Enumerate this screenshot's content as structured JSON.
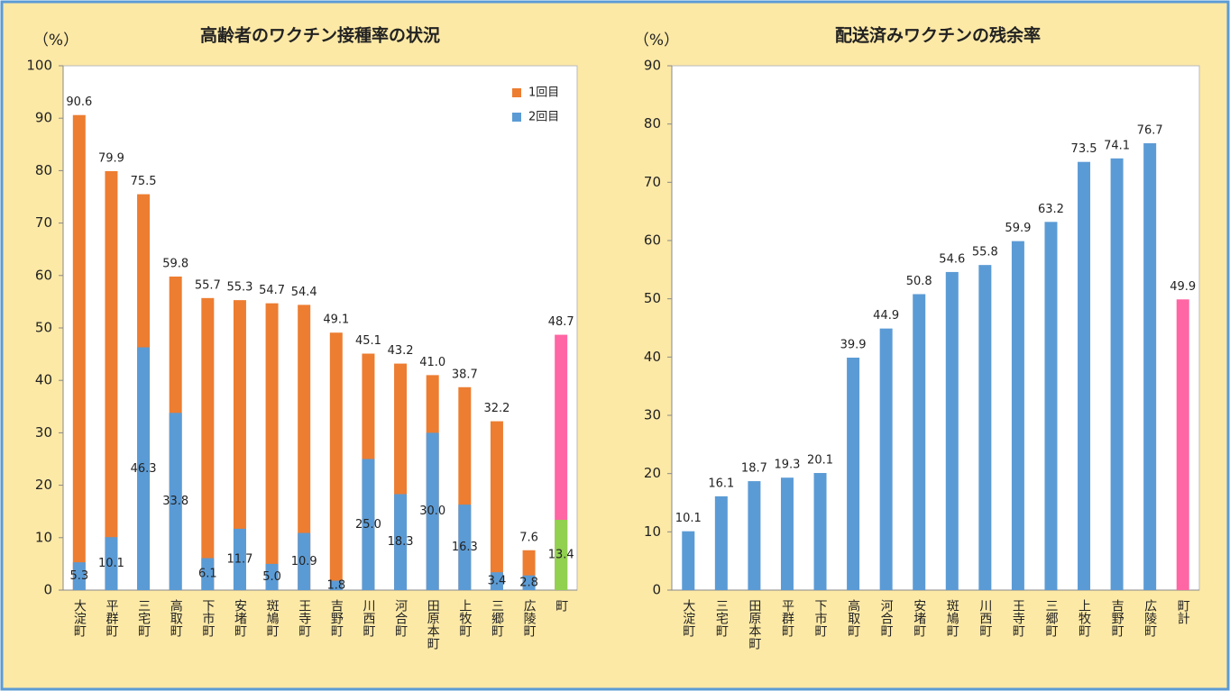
{
  "chart_data": [
    {
      "type": "bar",
      "title": "高齢者のワクチン接種率の状況",
      "y_label": "（%）",
      "categories": [
        "大淀町",
        "平群町",
        "三宅町",
        "高取町",
        "下市町",
        "安堵町",
        "斑鳩町",
        "王寺町",
        "吉野町",
        "川西町",
        "河合町",
        "田原本町",
        "上牧町",
        "三郷町",
        "広陵町",
        "町"
      ],
      "series": [
        {
          "name": "1回目",
          "color": "#ed7d31",
          "colors": [
            "#ed7d31",
            "#ed7d31",
            "#ed7d31",
            "#ed7d31",
            "#ed7d31",
            "#ed7d31",
            "#ed7d31",
            "#ed7d31",
            "#ed7d31",
            "#ed7d31",
            "#ed7d31",
            "#ed7d31",
            "#ed7d31",
            "#ed7d31",
            "#ed7d31",
            "#ff66a3"
          ],
          "values": [
            90.6,
            79.9,
            75.5,
            59.8,
            55.7,
            55.3,
            54.7,
            54.4,
            49.1,
            45.1,
            43.2,
            41.0,
            38.7,
            32.2,
            7.6,
            48.7
          ],
          "value_labels": [
            "90.6",
            "79.9",
            "75.5",
            "59.8",
            "55.7",
            "55.3",
            "54.7",
            "54.4",
            "49.1",
            "45.1",
            "43.2",
            "41.0",
            "38.7",
            "32.2",
            "7.6",
            "48.7"
          ]
        },
        {
          "name": "2回目",
          "color": "#5b9bd5",
          "colors": [
            "#5b9bd5",
            "#5b9bd5",
            "#5b9bd5",
            "#5b9bd5",
            "#5b9bd5",
            "#5b9bd5",
            "#5b9bd5",
            "#5b9bd5",
            "#5b9bd5",
            "#5b9bd5",
            "#5b9bd5",
            "#5b9bd5",
            "#5b9bd5",
            "#5b9bd5",
            "#5b9bd5",
            "#92d050"
          ],
          "values": [
            5.3,
            10.1,
            46.3,
            33.8,
            6.1,
            11.7,
            5.0,
            10.9,
            1.8,
            25.0,
            18.3,
            30.0,
            16.3,
            3.4,
            2.8,
            13.4
          ],
          "value_labels": [
            "5.3",
            "10.1",
            "46.3",
            "33.8",
            "6.1",
            "11.7",
            "5.0",
            "10.9",
            "1.8",
            "25.0",
            "18.3",
            "30.0",
            "16.3",
            "3.4",
            "2.8",
            "13.4"
          ]
        }
      ],
      "ylim": [
        0,
        100
      ],
      "yticks": [
        0,
        10,
        20,
        30,
        40,
        50,
        60,
        70,
        80,
        90,
        100
      ],
      "legend": "upper right",
      "grid": false
    },
    {
      "type": "bar",
      "title": "配送済みワクチンの残余率",
      "y_label": "（%）",
      "categories": [
        "大淀町",
        "三宅町",
        "田原本町",
        "平群町",
        "下市町",
        "高取町",
        "河合町",
        "安堵町",
        "斑鳩町",
        "川西町",
        "王寺町",
        "三郷町",
        "上牧町",
        "吉野町",
        "広陵町",
        "町計"
      ],
      "series": [
        {
          "name": null,
          "color": "#5b9bd5",
          "colors": [
            "#5b9bd5",
            "#5b9bd5",
            "#5b9bd5",
            "#5b9bd5",
            "#5b9bd5",
            "#5b9bd5",
            "#5b9bd5",
            "#5b9bd5",
            "#5b9bd5",
            "#5b9bd5",
            "#5b9bd5",
            "#5b9bd5",
            "#5b9bd5",
            "#5b9bd5",
            "#5b9bd5",
            "#ff66a3"
          ],
          "values": [
            10.1,
            16.1,
            18.7,
            19.3,
            20.1,
            39.9,
            44.9,
            50.8,
            54.6,
            55.8,
            59.9,
            63.2,
            73.5,
            74.1,
            76.7,
            49.9
          ]
        }
      ],
      "ylim": [
        0,
        90
      ],
      "yticks": [
        0,
        10,
        20,
        30,
        40,
        50,
        60,
        70,
        80,
        90
      ],
      "grid": false
    }
  ]
}
